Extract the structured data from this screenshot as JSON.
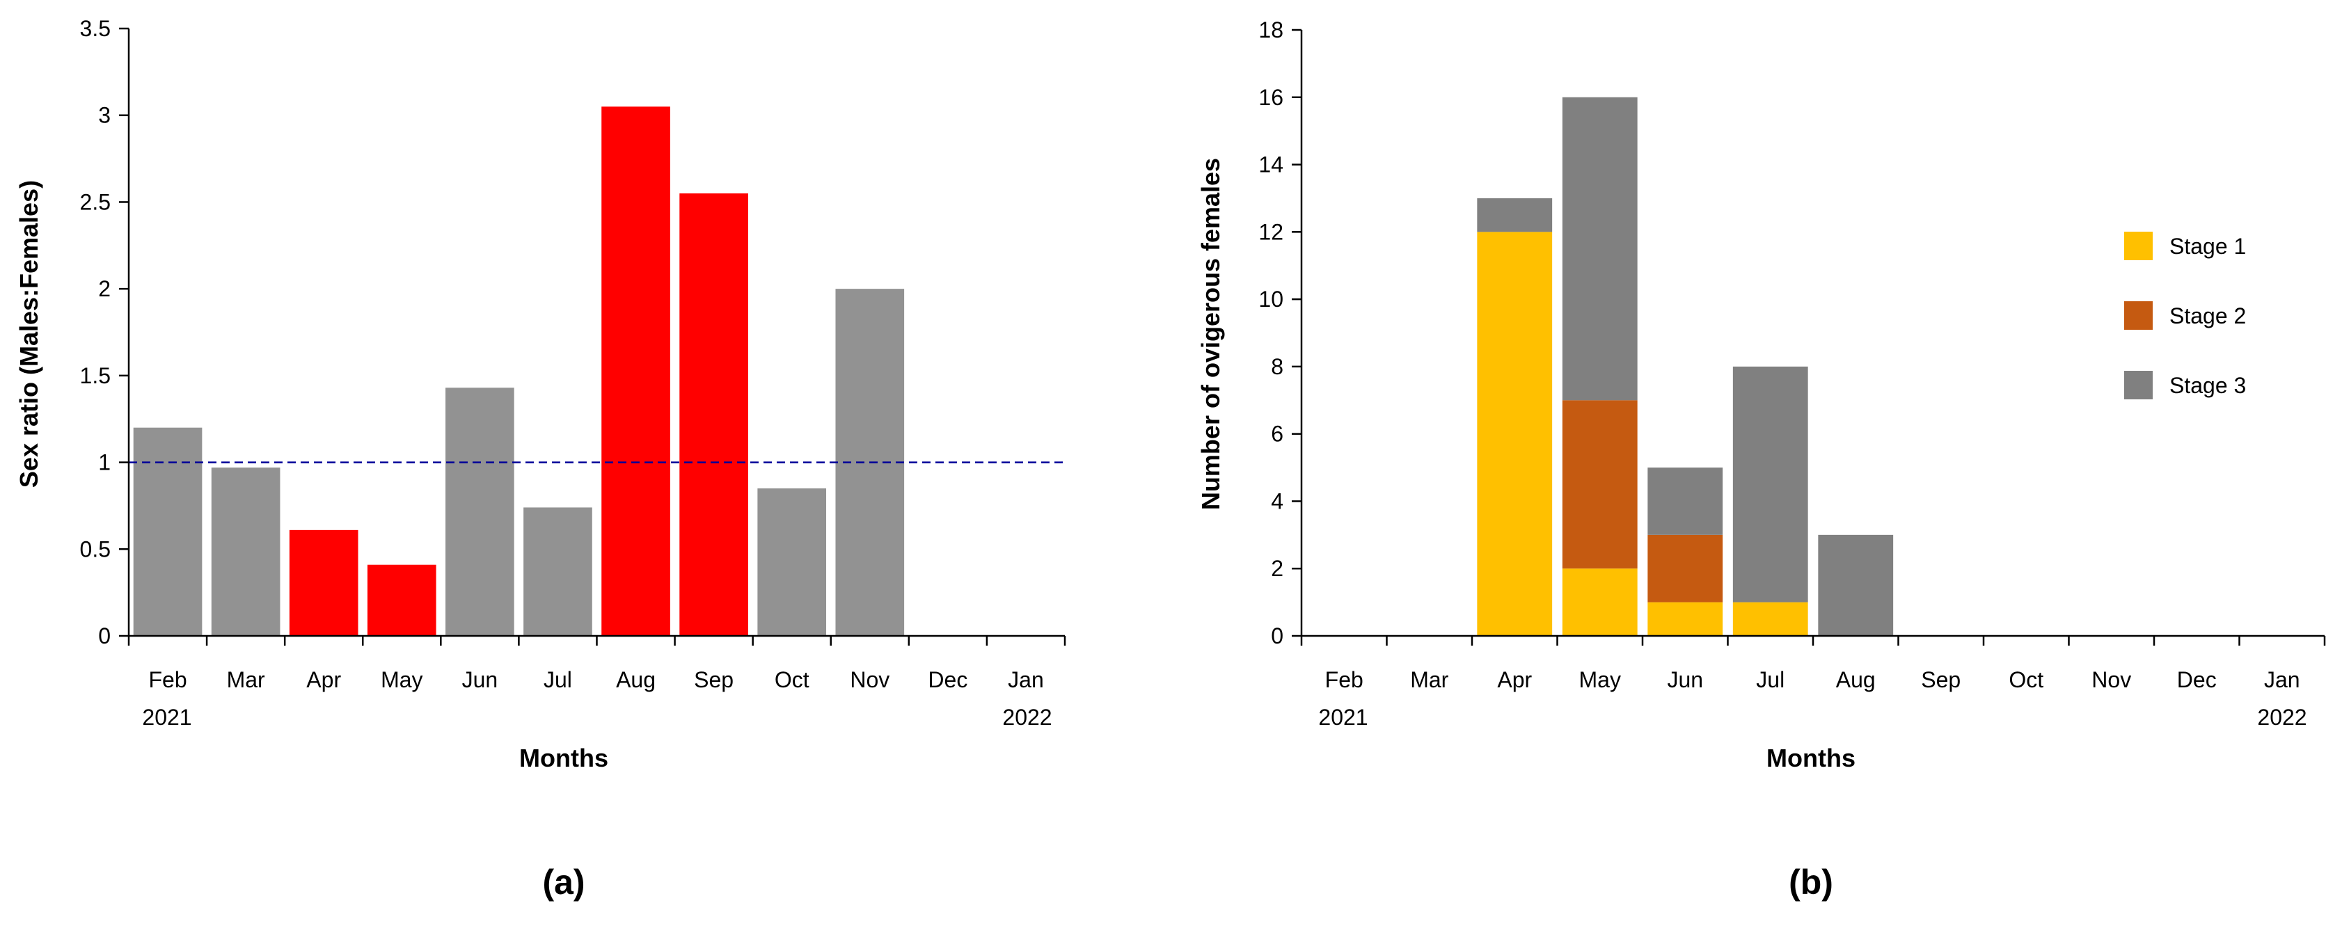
{
  "colors": {
    "grey_bar": "#929292",
    "red_bar": "#ff0000",
    "reference_line": "#000099",
    "stage1": "#ffc000",
    "stage2": "#c55a11",
    "stage3": "#808080"
  },
  "chart_data": [
    {
      "type": "bar",
      "panel": "(a)",
      "categories": [
        "Feb",
        "Mar",
        "Apr",
        "May",
        "Jun",
        "Jul",
        "Aug",
        "Sep",
        "Oct",
        "Nov",
        "Dec",
        "Jan"
      ],
      "year_labels": {
        "start": "2021",
        "end": "2022"
      },
      "values": [
        1.2,
        0.97,
        0.61,
        0.41,
        1.43,
        0.74,
        3.05,
        2.55,
        0.85,
        2.0,
        null,
        null
      ],
      "highlight": [
        false,
        false,
        true,
        true,
        false,
        false,
        true,
        true,
        false,
        false,
        false,
        false
      ],
      "reference_line": 1,
      "xlabel": "Months",
      "ylabel": "Sex ratio (Males:Females)",
      "ylim": [
        0,
        3.5
      ],
      "yticks": [
        "0",
        "0.5",
        "1",
        "1.5",
        "2",
        "2.5",
        "3",
        "3.5"
      ],
      "ytick_values": [
        0,
        0.5,
        1,
        1.5,
        2,
        2.5,
        3,
        3.5
      ]
    },
    {
      "type": "bar",
      "stacked": true,
      "panel": "(b)",
      "categories": [
        "Feb",
        "Mar",
        "Apr",
        "May",
        "Jun",
        "Jul",
        "Aug",
        "Sep",
        "Oct",
        "Nov",
        "Dec",
        "Jan"
      ],
      "year_labels": {
        "start": "2021",
        "end": "2022"
      },
      "series": [
        {
          "name": "Stage 1",
          "color_key": "stage1",
          "values": [
            0,
            0,
            12,
            2,
            1,
            1,
            0,
            0,
            0,
            0,
            0,
            0
          ]
        },
        {
          "name": "Stage 2",
          "color_key": "stage2",
          "values": [
            0,
            0,
            0,
            5,
            2,
            0,
            0,
            0,
            0,
            0,
            0,
            0
          ]
        },
        {
          "name": "Stage 3",
          "color_key": "stage3",
          "values": [
            0,
            0,
            1,
            9,
            2,
            7,
            3,
            0,
            0,
            0,
            0,
            0
          ]
        }
      ],
      "xlabel": "Months",
      "ylabel": "Number of ovigerous females",
      "ylim": [
        0,
        18
      ],
      "yticks": [
        "0",
        "2",
        "4",
        "6",
        "8",
        "10",
        "12",
        "14",
        "16",
        "18"
      ],
      "ytick_values": [
        0,
        2,
        4,
        6,
        8,
        10,
        12,
        14,
        16,
        18
      ],
      "legend": [
        "Stage 1",
        "Stage 2",
        "Stage 3"
      ],
      "legend_position": "right"
    }
  ]
}
